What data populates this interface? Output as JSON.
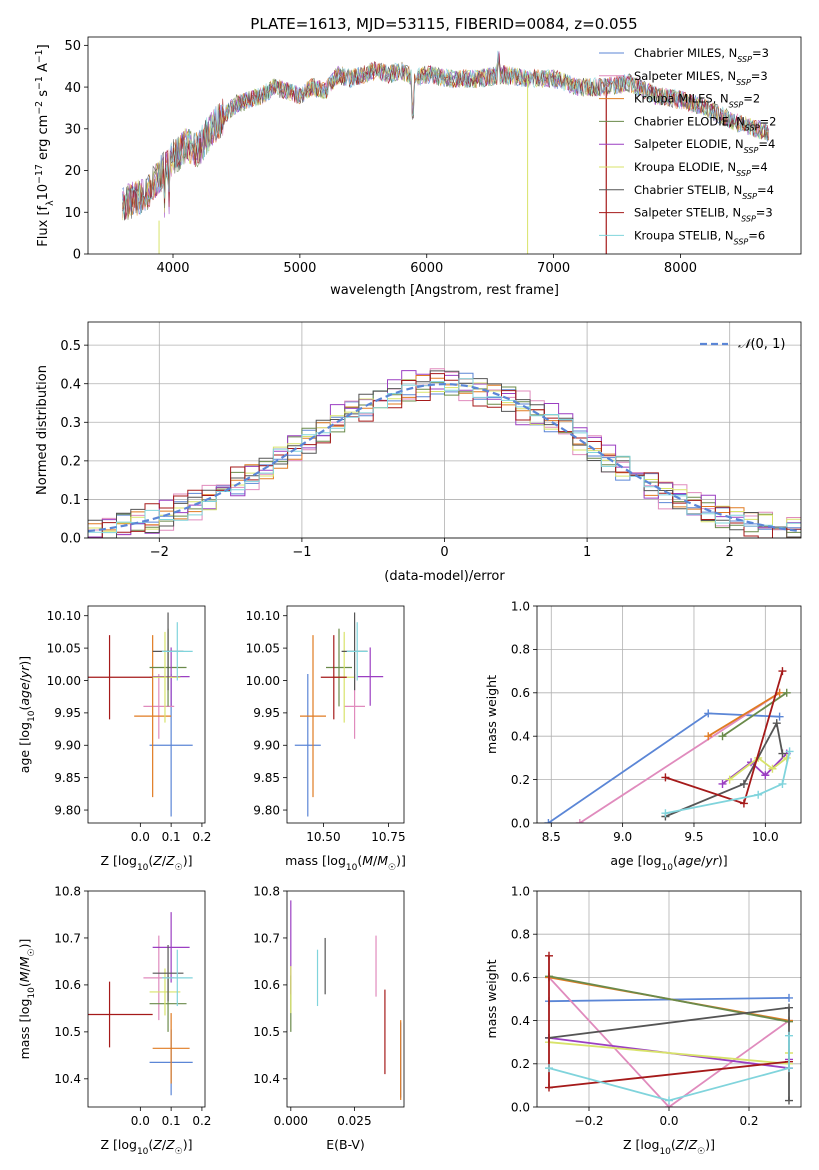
{
  "figure": {
    "title": "PLATE=1613, MJD=53115, FIBERID=0084, z=0.055"
  },
  "series_colors": [
    "#5b86d6",
    "#e08bbd",
    "#e07b22",
    "#6a8a4a",
    "#9b3fc2",
    "#d8e36a",
    "#555555",
    "#a51a1a",
    "#80d4dc"
  ],
  "chart_data": [
    {
      "id": "spectrum",
      "type": "line",
      "xlabel": "wavelength [Angstrom, rest frame]",
      "ylabel": "Flux [f_λ10^-17 erg cm^-2 s^-1 A^-1]",
      "xlim": [
        3330,
        8950
      ],
      "ylim": [
        0,
        52
      ],
      "xticks": [
        4000,
        5000,
        6000,
        7000,
        8000
      ],
      "yticks": [
        0,
        10,
        20,
        30,
        40,
        50
      ],
      "grid": false,
      "legend_position": "top-right",
      "legend": [
        {
          "name": "Chabrier MILES",
          "nssp": "3",
          "color": "#5b86d6"
        },
        {
          "name": "Salpeter MILES",
          "nssp": "3",
          "color": "#e08bbd"
        },
        {
          "name": "Kroupa MILES",
          "nssp": "2",
          "color": "#e07b22"
        },
        {
          "name": "Chabrier ELODIE",
          "nssp": "2",
          "color": "#6a8a4a"
        },
        {
          "name": "Salpeter ELODIE",
          "nssp": "4",
          "color": "#9b3fc2"
        },
        {
          "name": "Kroupa ELODIE",
          "nssp": "4",
          "color": "#d8e36a"
        },
        {
          "name": "Chabrier STELIB",
          "nssp": "4",
          "color": "#555555"
        },
        {
          "name": "Salpeter STELIB",
          "nssp": "3",
          "color": "#a51a1a"
        },
        {
          "name": "Kroupa STELIB",
          "nssp": "6",
          "color": "#80d4dc"
        }
      ],
      "data_continuum": {
        "x": [
          3600,
          3700,
          3800,
          3900,
          4000,
          4100,
          4200,
          4300,
          4400,
          4500,
          4600,
          4700,
          4800,
          4900,
          5000,
          5100,
          5200,
          5300,
          5400,
          5500,
          5600,
          5700,
          5800,
          5900,
          6000,
          6200,
          6400,
          6600,
          6800,
          7000,
          7200,
          7400,
          7600,
          7800,
          8000,
          8200,
          8400,
          8700
        ],
        "y": [
          12,
          13,
          15,
          19,
          23,
          26,
          25,
          30,
          33,
          36,
          37,
          38,
          40,
          39,
          38,
          40,
          39,
          43,
          42,
          43,
          44,
          43,
          44,
          42,
          43,
          42,
          42,
          43,
          42,
          42,
          40,
          40,
          41,
          38,
          37,
          35,
          32,
          29
        ]
      }
    },
    {
      "id": "residuals",
      "type": "histogram",
      "xlabel": "(data-model)/error",
      "ylabel": "Normed distribution",
      "xlim": [
        -2.5,
        2.5
      ],
      "ylim": [
        0,
        0.56
      ],
      "xticks": [
        -2,
        -1,
        0,
        1,
        2
      ],
      "yticks": [
        0.0,
        0.1,
        0.2,
        0.3,
        0.4,
        0.5
      ],
      "grid": true,
      "legend_position": "top-right",
      "legend": [
        {
          "name": "N(0, 1)",
          "color": "#5b86d6",
          "style": "dashed"
        }
      ],
      "bin_width": 0.1,
      "jitter_amplitude": [
        0.035,
        0.045,
        0.03,
        0.035,
        0.05,
        0.03,
        0.035,
        0.045,
        0.03
      ]
    },
    {
      "id": "age-vs-z",
      "type": "errorbar",
      "xlabel": "Z [log10(Z/Z☉)]",
      "ylabel": "age  [log10(age/yr)]",
      "xlim": [
        -0.17,
        0.21
      ],
      "ylim": [
        9.78,
        10.115
      ],
      "xticks": [
        0.0,
        0.1,
        0.2
      ],
      "yticks": [
        9.8,
        9.85,
        9.9,
        9.95,
        10.0,
        10.05,
        10.1
      ],
      "grid": false,
      "points": [
        {
          "x": 0.1,
          "xerr": 0.07,
          "y": 9.9,
          "yerr": 0.11,
          "color": "#5b86d6"
        },
        {
          "x": 0.06,
          "xerr": 0.05,
          "y": 9.96,
          "yerr": 0.05,
          "color": "#e08bbd"
        },
        {
          "x": 0.04,
          "xerr": 0.06,
          "y": 9.945,
          "yerr": 0.125,
          "color": "#e07b22"
        },
        {
          "x": 0.09,
          "xerr": 0.06,
          "y": 10.02,
          "yerr": 0.06,
          "color": "#6a8a4a"
        },
        {
          "x": 0.1,
          "xerr": 0.06,
          "y": 10.006,
          "yerr": 0.045,
          "color": "#9b3fc2"
        },
        {
          "x": 0.08,
          "xerr": 0.05,
          "y": 10.005,
          "yerr": 0.07,
          "color": "#d8e36a"
        },
        {
          "x": 0.09,
          "xerr": 0.05,
          "y": 10.045,
          "yerr": 0.06,
          "color": "#555555"
        },
        {
          "x": -0.1,
          "xerr": 0.14,
          "y": 10.005,
          "yerr": 0.065,
          "color": "#a51a1a"
        },
        {
          "x": 0.12,
          "xerr": 0.05,
          "y": 10.045,
          "yerr": 0.045,
          "color": "#80d4dc"
        }
      ]
    },
    {
      "id": "age-vs-mass",
      "type": "errorbar",
      "xlabel": "mass [log10(M/M☉)]",
      "ylabel": "",
      "xlim": [
        10.36,
        10.81
      ],
      "ylim": [
        9.78,
        10.115
      ],
      "xticks": [
        10.5,
        10.75
      ],
      "xtick_labels": [
        "10.50",
        "10.75"
      ],
      "yticks": [
        9.8,
        9.85,
        9.9,
        9.95,
        10.0,
        10.05,
        10.1
      ],
      "grid": false,
      "points": [
        {
          "x": 10.44,
          "xerr": 0.05,
          "y": 9.9,
          "yerr": 0.11,
          "color": "#5b86d6"
        },
        {
          "x": 10.62,
          "xerr": 0.04,
          "y": 9.96,
          "yerr": 0.05,
          "color": "#e08bbd"
        },
        {
          "x": 10.46,
          "xerr": 0.05,
          "y": 9.945,
          "yerr": 0.125,
          "color": "#e07b22"
        },
        {
          "x": 10.56,
          "xerr": 0.05,
          "y": 10.02,
          "yerr": 0.06,
          "color": "#6a8a4a"
        },
        {
          "x": 10.68,
          "xerr": 0.05,
          "y": 10.006,
          "yerr": 0.045,
          "color": "#9b3fc2"
        },
        {
          "x": 10.58,
          "xerr": 0.04,
          "y": 10.005,
          "yerr": 0.07,
          "color": "#d8e36a"
        },
        {
          "x": 10.62,
          "xerr": 0.05,
          "y": 10.045,
          "yerr": 0.06,
          "color": "#555555"
        },
        {
          "x": 10.54,
          "xerr": 0.05,
          "y": 10.005,
          "yerr": 0.065,
          "color": "#a51a1a"
        },
        {
          "x": 10.63,
          "xerr": 0.04,
          "y": 10.045,
          "yerr": 0.045,
          "color": "#80d4dc"
        }
      ]
    },
    {
      "id": "mass-weight-vs-age",
      "type": "line",
      "xlabel": "age  [log10(age/yr)]",
      "ylabel": "mass weight",
      "xlim": [
        8.4,
        10.25
      ],
      "ylim": [
        0,
        1.0
      ],
      "xticks": [
        8.5,
        9.0,
        9.5,
        10.0
      ],
      "yticks": [
        0.0,
        0.2,
        0.4,
        0.6,
        0.8,
        1.0
      ],
      "grid": true,
      "series": [
        {
          "color": "#5b86d6",
          "x": [
            8.48,
            9.6,
            10.1
          ],
          "y": [
            0.0,
            0.505,
            0.49
          ]
        },
        {
          "color": "#e08bbd",
          "x": [
            8.7,
            10.1
          ],
          "y": [
            0.0,
            0.6
          ]
        },
        {
          "color": "#e07b22",
          "x": [
            9.6,
            10.1
          ],
          "y": [
            0.4,
            0.6
          ]
        },
        {
          "color": "#6a8a4a",
          "x": [
            9.7,
            10.15
          ],
          "y": [
            0.4,
            0.6
          ]
        },
        {
          "color": "#9b3fc2",
          "x": [
            9.7,
            9.9,
            10.0,
            10.15
          ],
          "y": [
            0.18,
            0.28,
            0.22,
            0.32
          ]
        },
        {
          "color": "#d8e36a",
          "x": [
            9.75,
            9.95,
            10.05,
            10.15
          ],
          "y": [
            0.2,
            0.3,
            0.25,
            0.3
          ]
        },
        {
          "color": "#555555",
          "x": [
            9.3,
            9.85,
            10.08,
            10.12
          ],
          "y": [
            0.03,
            0.18,
            0.46,
            0.32
          ]
        },
        {
          "color": "#a51a1a",
          "x": [
            9.3,
            9.85,
            10.12
          ],
          "y": [
            0.21,
            0.09,
            0.7
          ]
        },
        {
          "color": "#80d4dc",
          "x": [
            9.3,
            9.95,
            10.12,
            10.17
          ],
          "y": [
            0.045,
            0.13,
            0.18,
            0.33
          ]
        }
      ]
    },
    {
      "id": "mass-vs-z",
      "type": "errorbar",
      "xlabel": "Z [log10(Z/Z☉)]",
      "ylabel": "mass [log10(M/M☉)]",
      "xlim": [
        -0.17,
        0.21
      ],
      "ylim": [
        10.34,
        10.8
      ],
      "xticks": [
        0.0,
        0.1,
        0.2
      ],
      "yticks": [
        10.4,
        10.5,
        10.6,
        10.7,
        10.8
      ],
      "grid": false,
      "points": [
        {
          "x": 0.1,
          "xerr": 0.07,
          "y": 10.435,
          "yerr": 0.07,
          "color": "#5b86d6"
        },
        {
          "x": 0.06,
          "xerr": 0.05,
          "y": 10.615,
          "yerr": 0.09,
          "color": "#e08bbd"
        },
        {
          "x": 0.1,
          "xerr": 0.06,
          "y": 10.465,
          "yerr": 0.075,
          "color": "#e07b22"
        },
        {
          "x": 0.09,
          "xerr": 0.06,
          "y": 10.56,
          "yerr": 0.06,
          "color": "#6a8a4a"
        },
        {
          "x": 0.1,
          "xerr": 0.06,
          "y": 10.68,
          "yerr": 0.075,
          "color": "#9b3fc2"
        },
        {
          "x": 0.08,
          "xerr": 0.05,
          "y": 10.585,
          "yerr": 0.05,
          "color": "#d8e36a"
        },
        {
          "x": 0.09,
          "xerr": 0.05,
          "y": 10.625,
          "yerr": 0.06,
          "color": "#555555"
        },
        {
          "x": -0.1,
          "xerr": 0.14,
          "y": 10.537,
          "yerr": 0.07,
          "color": "#a51a1a"
        },
        {
          "x": 0.12,
          "xerr": 0.05,
          "y": 10.615,
          "yerr": 0.06,
          "color": "#80d4dc"
        }
      ]
    },
    {
      "id": "mass-vs-ebv",
      "type": "errorbar",
      "xlabel": "E(B-V)",
      "ylabel": "",
      "xlim": [
        -0.0015,
        0.0445
      ],
      "ylim": [
        10.34,
        10.8
      ],
      "xticks": [
        0.0,
        0.025
      ],
      "xtick_labels": [
        "0.000",
        "0.025"
      ],
      "yticks": [
        10.4,
        10.5,
        10.6,
        10.7,
        10.8
      ],
      "grid": false,
      "points": [
        {
          "x": 0.0432,
          "xerr": 0,
          "y": 10.44,
          "yerr": 0.08,
          "color": "#5b86d6"
        },
        {
          "x": 0.0335,
          "xerr": 0,
          "y": 10.64,
          "yerr": 0.065,
          "color": "#e08bbd"
        },
        {
          "x": 0.0432,
          "xerr": 0,
          "y": 10.44,
          "yerr": 0.085,
          "color": "#e07b22"
        },
        {
          "x": 0.0,
          "xerr": 0,
          "y": 10.56,
          "yerr": 0.06,
          "color": "#6a8a4a"
        },
        {
          "x": 0.0,
          "xerr": 0,
          "y": 10.68,
          "yerr": 0.1,
          "color": "#9b3fc2"
        },
        {
          "x": 0.0,
          "xerr": 0,
          "y": 10.59,
          "yerr": 0.05,
          "color": "#d8e36a"
        },
        {
          "x": 0.0135,
          "xerr": 0,
          "y": 10.64,
          "yerr": 0.06,
          "color": "#555555"
        },
        {
          "x": 0.037,
          "xerr": 0,
          "y": 10.5,
          "yerr": 0.09,
          "color": "#a51a1a"
        },
        {
          "x": 0.0105,
          "xerr": 0,
          "y": 10.615,
          "yerr": 0.06,
          "color": "#80d4dc"
        }
      ]
    },
    {
      "id": "mass-weight-vs-z",
      "type": "line",
      "xlabel": "Z [log10(Z/Z☉)]",
      "ylabel": "mass weight",
      "xlim": [
        -0.33,
        0.33
      ],
      "ylim": [
        0,
        1.0
      ],
      "xticks": [
        -0.2,
        0.0,
        0.2
      ],
      "yticks": [
        0.0,
        0.2,
        0.4,
        0.6,
        0.8,
        1.0
      ],
      "grid": true,
      "series": [
        {
          "color": "#5b86d6",
          "x": [
            -0.3,
            0.3
          ],
          "y": [
            0.49,
            0.505
          ]
        },
        {
          "color": "#e08bbd",
          "x": [
            -0.3,
            0.0,
            0.3
          ],
          "y": [
            0.6,
            0.0,
            0.4
          ]
        },
        {
          "color": "#e07b22",
          "x": [
            -0.3,
            0.3
          ],
          "y": [
            0.6,
            0.4
          ]
        },
        {
          "color": "#6a8a4a",
          "x": [
            -0.3,
            0.3
          ],
          "y": [
            0.605,
            0.395
          ]
        },
        {
          "color": "#9b3fc2",
          "x": [
            -0.3,
            0.3,
            0.3
          ],
          "y": [
            0.32,
            0.18,
            0.22
          ]
        },
        {
          "color": "#d8e36a",
          "x": [
            -0.3,
            0.3,
            0.3
          ],
          "y": [
            0.3,
            0.2,
            0.25
          ]
        },
        {
          "color": "#555555",
          "x": [
            -0.3,
            0.3,
            0.3
          ],
          "y": [
            0.32,
            0.46,
            0.03
          ]
        },
        {
          "color": "#a51a1a",
          "x": [
            -0.3,
            -0.3,
            0.3
          ],
          "y": [
            0.7,
            0.09,
            0.21
          ]
        },
        {
          "color": "#80d4dc",
          "x": [
            -0.3,
            0.0,
            0.3,
            0.3
          ],
          "y": [
            0.18,
            0.03,
            0.18,
            0.33
          ]
        }
      ]
    }
  ]
}
